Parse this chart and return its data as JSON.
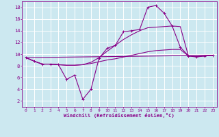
{
  "xlabel": "Windchill (Refroidissement éolien,°C)",
  "bg_color": "#cce8f0",
  "grid_color": "#ffffff",
  "line_color": "#880088",
  "xlim": [
    -0.5,
    23.5
  ],
  "ylim": [
    1,
    19
  ],
  "xticks": [
    0,
    1,
    2,
    3,
    4,
    5,
    6,
    7,
    8,
    9,
    10,
    11,
    12,
    13,
    14,
    15,
    16,
    17,
    18,
    19,
    20,
    21,
    22,
    23
  ],
  "yticks": [
    2,
    4,
    6,
    8,
    10,
    12,
    14,
    16,
    18
  ],
  "curve1_x": [
    0,
    1,
    2,
    3,
    4,
    5,
    6,
    7,
    8,
    9,
    10,
    11,
    12,
    13,
    14,
    15,
    16,
    17,
    18,
    19,
    20,
    21,
    22,
    23
  ],
  "curve1_y": [
    9.4,
    8.8,
    8.3,
    8.3,
    8.2,
    5.7,
    6.4,
    2.3,
    4.0,
    9.3,
    11.0,
    11.5,
    13.8,
    14.0,
    14.2,
    18.0,
    18.3,
    17.0,
    14.8,
    11.2,
    9.7,
    9.5,
    9.7,
    9.8
  ],
  "curve2_x": [
    0,
    23
  ],
  "curve2_y": [
    9.4,
    9.8
  ],
  "curve3_x": [
    0,
    1,
    2,
    3,
    4,
    5,
    6,
    7,
    8,
    9,
    10,
    11,
    12,
    13,
    14,
    15,
    16,
    17,
    18,
    19,
    20,
    21,
    22,
    23
  ],
  "curve3_y": [
    9.4,
    8.8,
    8.3,
    8.3,
    8.2,
    8.1,
    8.1,
    8.2,
    8.4,
    8.7,
    9.0,
    9.2,
    9.5,
    9.8,
    10.1,
    10.4,
    10.6,
    10.7,
    10.8,
    10.8,
    9.7,
    9.6,
    9.7,
    9.8
  ],
  "curve4_x": [
    0,
    1,
    2,
    3,
    4,
    5,
    6,
    7,
    8,
    9,
    10,
    11,
    12,
    13,
    14,
    15,
    16,
    17,
    18,
    19,
    20,
    21,
    22,
    23
  ],
  "curve4_y": [
    9.4,
    8.8,
    8.3,
    8.3,
    8.2,
    8.1,
    8.1,
    8.2,
    8.6,
    9.4,
    10.5,
    11.5,
    12.5,
    13.3,
    14.0,
    14.5,
    14.6,
    14.7,
    14.8,
    14.7,
    9.7,
    9.6,
    9.7,
    9.8
  ]
}
